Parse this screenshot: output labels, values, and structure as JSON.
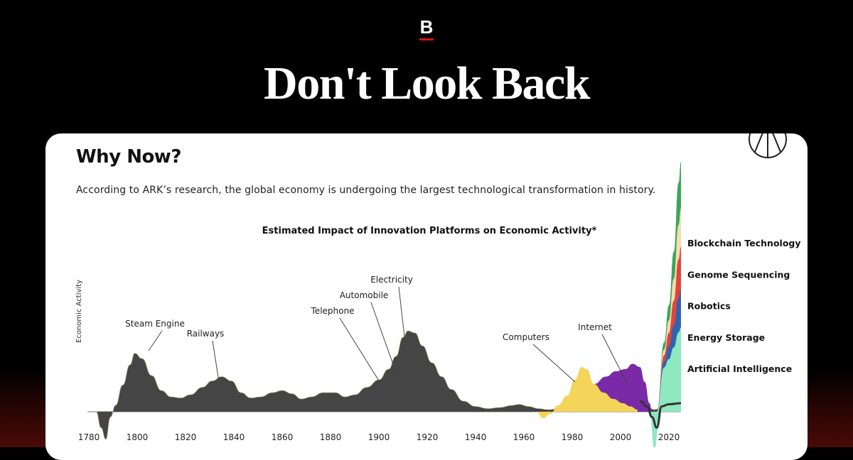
{
  "header": {
    "logo_letter": "B",
    "headline": "Don't Look Back"
  },
  "card": {
    "title": "Why Now?",
    "subtitle": "According to ARK’s research, the global economy is undergoing the largest technological transformation in history."
  },
  "colors": {
    "background": "#000000",
    "accent": "#d0121a",
    "base_area": "#454545",
    "computers": "#f5d45a",
    "internet": "#7a2aa6",
    "artificial_intelligence": "#8ee8c0",
    "energy_storage": "#2f63b0",
    "robotics": "#e0453a",
    "genome_sequencing": "#f7dcb0",
    "blockchain_technology": "#3aa65a"
  },
  "chart_data": {
    "type": "area",
    "title": "Estimated Impact of Innovation Platforms on Economic Activity*",
    "xlabel": "",
    "ylabel": "Economic Activity",
    "xlim": [
      1780,
      2025
    ],
    "x_ticks": [
      "1780",
      "1800",
      "1820",
      "1840",
      "1860",
      "1880",
      "1900",
      "1920",
      "1940",
      "1960",
      "1980",
      "2000",
      "2020"
    ],
    "series": [
      {
        "name": "Artificial Intelligence"
      },
      {
        "name": "Energy Storage"
      },
      {
        "name": "Robotics"
      },
      {
        "name": "Genome Sequencing"
      },
      {
        "name": "Blockchain Technology"
      }
    ],
    "annotations": [
      {
        "label": "Steam Engine",
        "year": 1799
      },
      {
        "label": "Railways",
        "year": 1836
      },
      {
        "label": "Telephone",
        "year": 1899
      },
      {
        "label": "Automobile",
        "year": 1908
      },
      {
        "label": "Electricity",
        "year": 1913
      },
      {
        "label": "Computers",
        "year": 1983
      },
      {
        "label": "Internet",
        "year": 2003
      }
    ],
    "base_curve": [
      [
        1783,
        0
      ],
      [
        1785,
        -0.15
      ],
      [
        1787,
        -0.26
      ],
      [
        1789,
        -0.05
      ],
      [
        1791,
        0.06
      ],
      [
        1794,
        0.25
      ],
      [
        1797,
        0.44
      ],
      [
        1799,
        0.55
      ],
      [
        1802,
        0.5
      ],
      [
        1806,
        0.34
      ],
      [
        1810,
        0.2
      ],
      [
        1814,
        0.14
      ],
      [
        1818,
        0.13
      ],
      [
        1822,
        0.16
      ],
      [
        1827,
        0.23
      ],
      [
        1831,
        0.29
      ],
      [
        1835,
        0.33
      ],
      [
        1839,
        0.29
      ],
      [
        1843,
        0.18
      ],
      [
        1847,
        0.13
      ],
      [
        1851,
        0.14
      ],
      [
        1856,
        0.18
      ],
      [
        1860,
        0.2
      ],
      [
        1864,
        0.17
      ],
      [
        1868,
        0.12
      ],
      [
        1872,
        0.14
      ],
      [
        1877,
        0.18
      ],
      [
        1882,
        0.18
      ],
      [
        1886,
        0.14
      ],
      [
        1890,
        0.16
      ],
      [
        1895,
        0.23
      ],
      [
        1900,
        0.3
      ],
      [
        1904,
        0.4
      ],
      [
        1907,
        0.52
      ],
      [
        1910,
        0.7
      ],
      [
        1912,
        0.76
      ],
      [
        1915,
        0.74
      ],
      [
        1918,
        0.62
      ],
      [
        1922,
        0.46
      ],
      [
        1926,
        0.33
      ],
      [
        1930,
        0.21
      ],
      [
        1935,
        0.1
      ],
      [
        1940,
        0.05
      ],
      [
        1945,
        0.03
      ],
      [
        1950,
        0.04
      ],
      [
        1955,
        0.06
      ],
      [
        1958,
        0.07
      ],
      [
        1962,
        0.05
      ],
      [
        1966,
        0.03
      ],
      [
        1970,
        0.02
      ],
      [
        1975,
        0.03
      ],
      [
        1980,
        0.05
      ],
      [
        1985,
        0.08
      ],
      [
        1990,
        0.1
      ],
      [
        1995,
        0.09
      ],
      [
        2000,
        0.11
      ],
      [
        2005,
        0.12
      ],
      [
        2008,
        0.1
      ],
      [
        2011,
        0.05
      ],
      [
        2014,
        0.02
      ],
      [
        2018,
        0.06
      ],
      [
        2022,
        0.08
      ],
      [
        2025,
        0.08
      ]
    ],
    "computers_curve": [
      [
        1965,
        0
      ],
      [
        1968,
        -0.06
      ],
      [
        1971,
        -0.02
      ],
      [
        1974,
        0.06
      ],
      [
        1978,
        0.15
      ],
      [
        1981,
        0.3
      ],
      [
        1984,
        0.42
      ],
      [
        1986,
        0.4
      ],
      [
        1989,
        0.26
      ],
      [
        1993,
        0.18
      ],
      [
        1997,
        0.12
      ],
      [
        2001,
        0.08
      ],
      [
        2004,
        0.05
      ],
      [
        2007,
        0.02
      ]
    ],
    "internet_curve": [
      [
        1980,
        0
      ],
      [
        1985,
        0.14
      ],
      [
        1989,
        0.26
      ],
      [
        1994,
        0.33
      ],
      [
        1998,
        0.38
      ],
      [
        2002,
        0.4
      ],
      [
        2005,
        0.45
      ],
      [
        2008,
        0.42
      ],
      [
        2010,
        0.28
      ],
      [
        2012,
        0.08
      ],
      [
        2013,
        0
      ]
    ],
    "ai_curve": [
      [
        2012,
        0
      ],
      [
        2014,
        -0.35
      ],
      [
        2016,
        -0.1
      ],
      [
        2018,
        0.22
      ],
      [
        2021,
        0.38
      ],
      [
        2025,
        0.4
      ]
    ],
    "stack_curve": [
      [
        2015,
        0
      ],
      [
        2018,
        0.3
      ],
      [
        2020,
        0.65
      ],
      [
        2022,
        1.15
      ],
      [
        2024,
        1.8
      ],
      [
        2025,
        2.0
      ]
    ]
  }
}
